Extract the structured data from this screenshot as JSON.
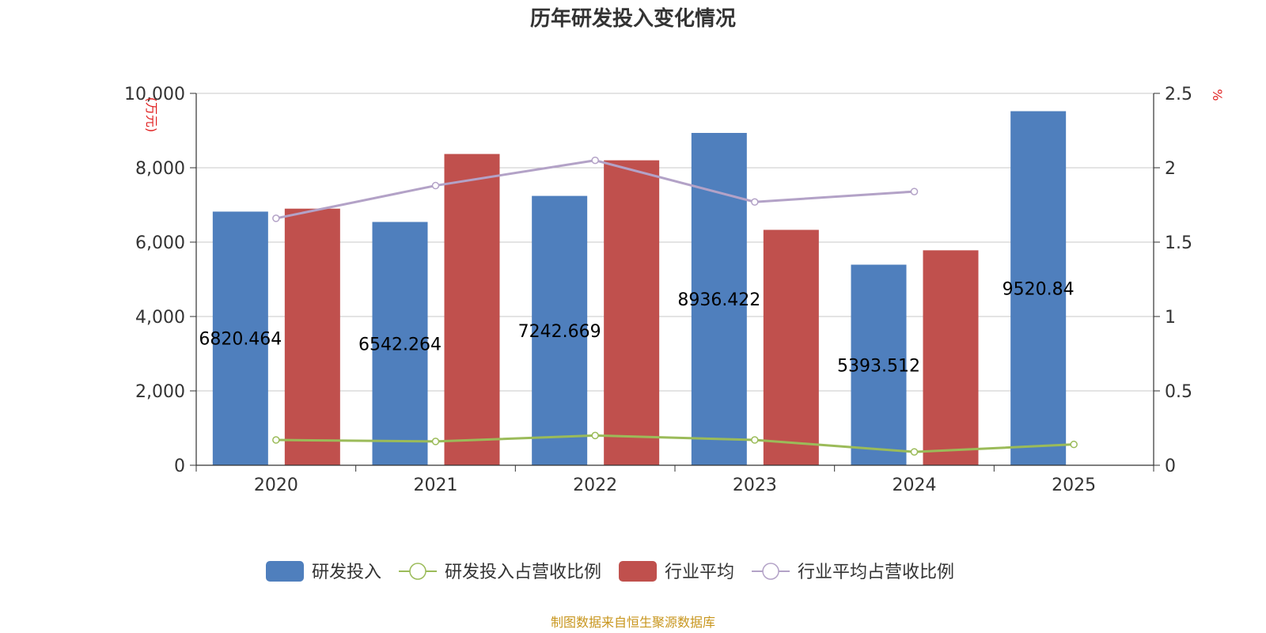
{
  "chart_data": {
    "type": "bar",
    "title": "历年研发投入变化情况",
    "categories": [
      "2020",
      "2021",
      "2022",
      "2023",
      "2024",
      "2025"
    ],
    "left_axis": {
      "unit_label": "(万元)",
      "ylim": [
        0,
        10000
      ],
      "ticks": [
        "0",
        "2,000",
        "4,000",
        "6,000",
        "8,000",
        "10,000"
      ]
    },
    "right_axis": {
      "unit_label": "%",
      "ylim": [
        0,
        2.5
      ],
      "ticks": [
        "0",
        "0.5",
        "1",
        "1.5",
        "2",
        "2.5"
      ]
    },
    "series": [
      {
        "name": "研发投入",
        "kind": "bar",
        "axis": "left",
        "color": "#4f7fbd",
        "values": [
          6820.464,
          6542.264,
          7242.669,
          8936.422,
          5393.512,
          9520.84
        ],
        "labels": [
          "6820.464",
          "6542.264",
          "7242.669",
          "8936.422",
          "5393.512",
          "9520.84"
        ]
      },
      {
        "name": "研发投入占营收比例",
        "kind": "line",
        "axis": "right",
        "color": "#9bbb59",
        "values": [
          0.17,
          0.16,
          0.2,
          0.17,
          0.09,
          0.14
        ]
      },
      {
        "name": "行业平均",
        "kind": "bar",
        "axis": "left",
        "color": "#c0504d",
        "values": [
          6900,
          8370,
          8200,
          6330,
          5780,
          null
        ]
      },
      {
        "name": "行业平均占营收比例",
        "kind": "line",
        "axis": "right",
        "color": "#b3a2c7",
        "values": [
          1.66,
          1.88,
          2.05,
          1.77,
          1.84,
          null
        ]
      }
    ],
    "grid": true,
    "legend_position": "bottom"
  },
  "source_note": "制图数据来自恒生聚源数据库"
}
